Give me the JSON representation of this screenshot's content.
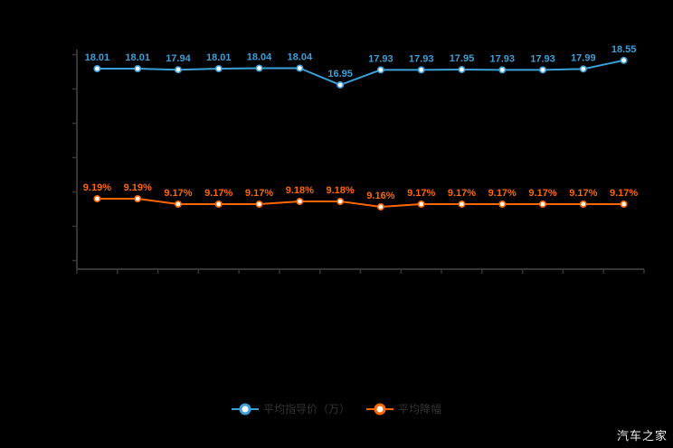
{
  "chart_data": {
    "type": "line",
    "title": "",
    "xlabel": "",
    "ylabel": "",
    "x_tick_labels_visible": false,
    "y_tick_labels_visible": false,
    "grid": false,
    "legend_position": "bottom",
    "background": "#000000",
    "axis_color": "#363636",
    "point_count": 14,
    "series": [
      {
        "name": "平均指导价（万）",
        "color": "#3b9fd8",
        "marker": "empty-circle",
        "label_suffix": "",
        "values": [
          18.01,
          18.01,
          17.94,
          18.01,
          18.04,
          18.04,
          16.95,
          17.93,
          17.93,
          17.95,
          17.93,
          17.93,
          17.99,
          18.55
        ]
      },
      {
        "name": "平均降幅",
        "color": "#ff6600",
        "marker": "empty-circle",
        "label_suffix": "%",
        "values": [
          9.19,
          9.19,
          9.17,
          9.17,
          9.17,
          9.18,
          9.18,
          9.16,
          9.17,
          9.17,
          9.17,
          9.17,
          9.17,
          9.17
        ]
      }
    ]
  },
  "legend": {
    "items": [
      "平均指导价（万）",
      "平均降幅"
    ]
  },
  "watermark": "汽车之家"
}
